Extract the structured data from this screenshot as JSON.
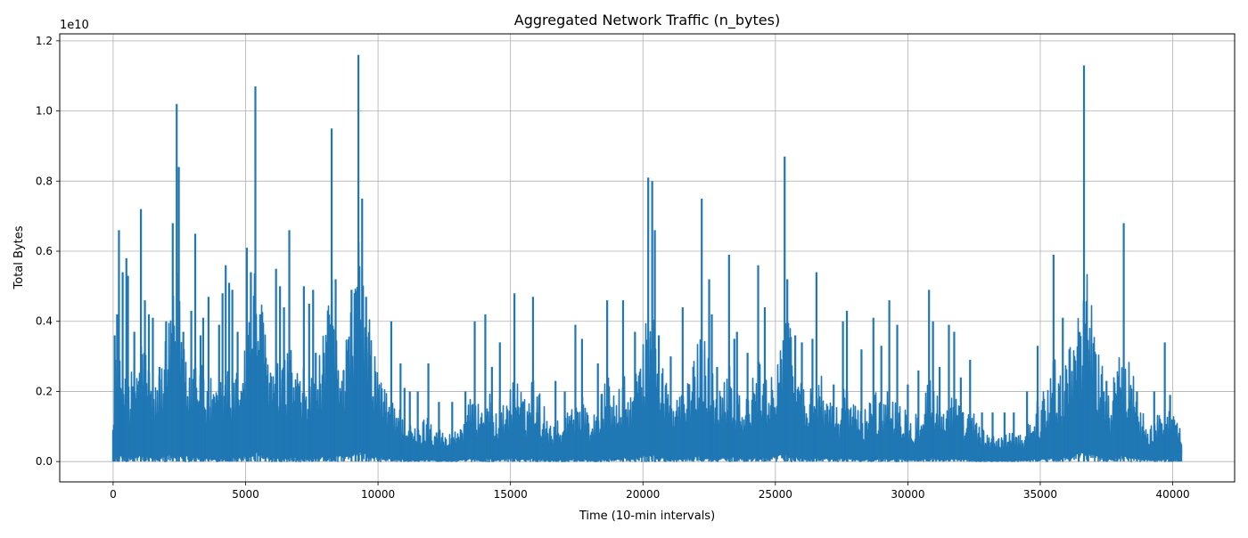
{
  "chart_data": {
    "type": "line",
    "title": "Aggregated Network Traffic (n_bytes)",
    "xlabel": "Time (10-min intervals)",
    "ylabel": "Total Bytes",
    "y_offset_label": "1e10",
    "y_scale_factor": 10000000000,
    "xlim": [
      -2016,
      42336
    ],
    "ylim": [
      -0.058,
      1.22
    ],
    "x_ticks": [
      0,
      5000,
      10000,
      15000,
      20000,
      25000,
      30000,
      35000,
      40000
    ],
    "x_tick_labels": [
      "0",
      "5000",
      "10000",
      "15000",
      "20000",
      "25000",
      "30000",
      "35000",
      "40000"
    ],
    "y_ticks": [
      0.0,
      0.2,
      0.4,
      0.6,
      0.8,
      1.0,
      1.2
    ],
    "y_tick_labels": [
      "0.0",
      "0.2",
      "0.4",
      "0.6",
      "0.8",
      "1.0",
      "1.2"
    ],
    "grid": true,
    "line_color": "#1f77b4",
    "series": [
      {
        "name": "",
        "x_range": [
          0,
          40320
        ],
        "baseline_max": 0.08,
        "floor": 0.0,
        "peaks": [
          {
            "x": 0,
            "y": 0.09
          },
          {
            "x": 60,
            "y": 0.36
          },
          {
            "x": 150,
            "y": 0.42
          },
          {
            "x": 220,
            "y": 0.66
          },
          {
            "x": 360,
            "y": 0.54
          },
          {
            "x": 500,
            "y": 0.58
          },
          {
            "x": 560,
            "y": 0.53
          },
          {
            "x": 800,
            "y": 0.37
          },
          {
            "x": 1050,
            "y": 0.72
          },
          {
            "x": 1200,
            "y": 0.46
          },
          {
            "x": 1350,
            "y": 0.42
          },
          {
            "x": 1500,
            "y": 0.41
          },
          {
            "x": 1750,
            "y": 0.27
          },
          {
            "x": 2000,
            "y": 0.4
          },
          {
            "x": 2250,
            "y": 0.68
          },
          {
            "x": 2400,
            "y": 1.02
          },
          {
            "x": 2480,
            "y": 0.84
          },
          {
            "x": 2650,
            "y": 0.37
          },
          {
            "x": 2950,
            "y": 0.43
          },
          {
            "x": 3100,
            "y": 0.65
          },
          {
            "x": 3300,
            "y": 0.36
          },
          {
            "x": 3400,
            "y": 0.41
          },
          {
            "x": 3600,
            "y": 0.47
          },
          {
            "x": 4000,
            "y": 0.39
          },
          {
            "x": 4130,
            "y": 0.48
          },
          {
            "x": 4250,
            "y": 0.56
          },
          {
            "x": 4380,
            "y": 0.51
          },
          {
            "x": 4500,
            "y": 0.49
          },
          {
            "x": 4700,
            "y": 0.37
          },
          {
            "x": 5050,
            "y": 0.61
          },
          {
            "x": 5200,
            "y": 0.54
          },
          {
            "x": 5370,
            "y": 1.07
          },
          {
            "x": 5550,
            "y": 0.42
          },
          {
            "x": 5750,
            "y": 0.27
          },
          {
            "x": 6150,
            "y": 0.55
          },
          {
            "x": 6300,
            "y": 0.5
          },
          {
            "x": 6450,
            "y": 0.44
          },
          {
            "x": 6650,
            "y": 0.66
          },
          {
            "x": 6800,
            "y": 0.16
          },
          {
            "x": 7200,
            "y": 0.5
          },
          {
            "x": 7400,
            "y": 0.45
          },
          {
            "x": 7550,
            "y": 0.49
          },
          {
            "x": 7650,
            "y": 0.31
          },
          {
            "x": 8050,
            "y": 0.34
          },
          {
            "x": 8250,
            "y": 0.95
          },
          {
            "x": 8400,
            "y": 0.52
          },
          {
            "x": 8700,
            "y": 0.26
          },
          {
            "x": 9000,
            "y": 0.49
          },
          {
            "x": 9150,
            "y": 0.33
          },
          {
            "x": 9260,
            "y": 1.16
          },
          {
            "x": 9400,
            "y": 0.75
          },
          {
            "x": 9550,
            "y": 0.47
          },
          {
            "x": 9650,
            "y": 0.31
          },
          {
            "x": 10000,
            "y": 0.19
          },
          {
            "x": 10500,
            "y": 0.4
          },
          {
            "x": 10850,
            "y": 0.28
          },
          {
            "x": 11000,
            "y": 0.21
          },
          {
            "x": 11200,
            "y": 0.2
          },
          {
            "x": 11500,
            "y": 0.2
          },
          {
            "x": 11900,
            "y": 0.28
          },
          {
            "x": 12300,
            "y": 0.17
          },
          {
            "x": 12800,
            "y": 0.17
          },
          {
            "x": 13300,
            "y": 0.2
          },
          {
            "x": 13650,
            "y": 0.4
          },
          {
            "x": 14050,
            "y": 0.42
          },
          {
            "x": 14300,
            "y": 0.27
          },
          {
            "x": 14600,
            "y": 0.34
          },
          {
            "x": 15150,
            "y": 0.48
          },
          {
            "x": 15850,
            "y": 0.47
          },
          {
            "x": 16000,
            "y": 0.14
          },
          {
            "x": 16700,
            "y": 0.23
          },
          {
            "x": 17050,
            "y": 0.2
          },
          {
            "x": 17450,
            "y": 0.39
          },
          {
            "x": 17700,
            "y": 0.35
          },
          {
            "x": 18300,
            "y": 0.28
          },
          {
            "x": 18650,
            "y": 0.46
          },
          {
            "x": 19250,
            "y": 0.46
          },
          {
            "x": 19700,
            "y": 0.37
          },
          {
            "x": 20200,
            "y": 0.81
          },
          {
            "x": 20350,
            "y": 0.8
          },
          {
            "x": 20450,
            "y": 0.66
          },
          {
            "x": 20600,
            "y": 0.36
          },
          {
            "x": 21050,
            "y": 0.3
          },
          {
            "x": 21500,
            "y": 0.44
          },
          {
            "x": 21900,
            "y": 0.27
          },
          {
            "x": 22220,
            "y": 0.75
          },
          {
            "x": 22500,
            "y": 0.52
          },
          {
            "x": 22600,
            "y": 0.42
          },
          {
            "x": 22800,
            "y": 0.27
          },
          {
            "x": 23250,
            "y": 0.59
          },
          {
            "x": 23450,
            "y": 0.35
          },
          {
            "x": 23550,
            "y": 0.37
          },
          {
            "x": 23950,
            "y": 0.31
          },
          {
            "x": 24350,
            "y": 0.56
          },
          {
            "x": 24600,
            "y": 0.44
          },
          {
            "x": 25350,
            "y": 0.87
          },
          {
            "x": 25450,
            "y": 0.52
          },
          {
            "x": 25750,
            "y": 0.36
          },
          {
            "x": 26000,
            "y": 0.34
          },
          {
            "x": 26400,
            "y": 0.35
          },
          {
            "x": 26550,
            "y": 0.54
          },
          {
            "x": 27200,
            "y": 0.22
          },
          {
            "x": 27550,
            "y": 0.4
          },
          {
            "x": 27700,
            "y": 0.43
          },
          {
            "x": 28250,
            "y": 0.32
          },
          {
            "x": 28700,
            "y": 0.41
          },
          {
            "x": 29000,
            "y": 0.33
          },
          {
            "x": 29300,
            "y": 0.46
          },
          {
            "x": 29600,
            "y": 0.39
          },
          {
            "x": 30000,
            "y": 0.22
          },
          {
            "x": 30400,
            "y": 0.26
          },
          {
            "x": 30800,
            "y": 0.49
          },
          {
            "x": 30950,
            "y": 0.4
          },
          {
            "x": 31200,
            "y": 0.27
          },
          {
            "x": 31550,
            "y": 0.39
          },
          {
            "x": 31750,
            "y": 0.37
          },
          {
            "x": 32000,
            "y": 0.24
          },
          {
            "x": 32350,
            "y": 0.29
          },
          {
            "x": 32800,
            "y": 0.14
          },
          {
            "x": 33200,
            "y": 0.14
          },
          {
            "x": 33650,
            "y": 0.14
          },
          {
            "x": 34000,
            "y": 0.14
          },
          {
            "x": 34500,
            "y": 0.2
          },
          {
            "x": 34900,
            "y": 0.33
          },
          {
            "x": 35500,
            "y": 0.59
          },
          {
            "x": 35850,
            "y": 0.41
          },
          {
            "x": 36100,
            "y": 0.32
          },
          {
            "x": 36450,
            "y": 0.25
          },
          {
            "x": 36650,
            "y": 1.13
          },
          {
            "x": 36800,
            "y": 0.32
          },
          {
            "x": 37400,
            "y": 0.2
          },
          {
            "x": 37500,
            "y": 0.23
          },
          {
            "x": 37900,
            "y": 0.1
          },
          {
            "x": 38150,
            "y": 0.68
          },
          {
            "x": 38650,
            "y": 0.2
          },
          {
            "x": 39300,
            "y": 0.2
          },
          {
            "x": 39700,
            "y": 0.34
          },
          {
            "x": 39900,
            "y": 0.19
          },
          {
            "x": 40200,
            "y": 0.07
          },
          {
            "x": 40320,
            "y": 0.05
          }
        ]
      }
    ]
  }
}
